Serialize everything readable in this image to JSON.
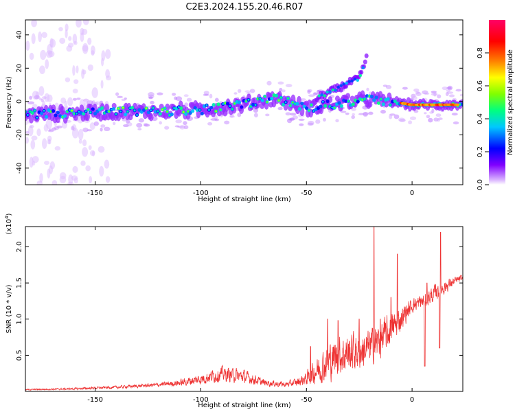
{
  "figure_title": "C2E3.2024.155.20.46.R07",
  "chart_data": [
    {
      "type": "heatmap",
      "title": "C2E3.2024.155.20.46.R07",
      "xlabel": "Height of straight line (km)",
      "ylabel": "Frequency (Hz)",
      "xlim": [
        -183,
        24
      ],
      "ylim": [
        -50,
        49
      ],
      "x_ticks": [
        -150,
        -100,
        -50,
        0
      ],
      "y_ticks": [
        -40,
        -20,
        0,
        20,
        40
      ],
      "colorbar": {
        "label": "Normalized spectral amplitude",
        "range": [
          0.0,
          1.0
        ],
        "ticks": [
          0.0,
          0.2,
          0.4,
          0.6,
          0.8
        ],
        "colors": [
          "#ffffff",
          "#d9b3ff",
          "#8000ff",
          "#0000ff",
          "#00c8ff",
          "#00ff80",
          "#80ff00",
          "#ffff00",
          "#ff8000",
          "#ff0000",
          "#ff0066"
        ]
      },
      "ridge": {
        "description": "dominant frequency track vs height",
        "x": [
          -183,
          -160,
          -140,
          -120,
          -100,
          -80,
          -65,
          -50,
          -40,
          -30,
          -20,
          -10,
          0,
          10,
          24
        ],
        "y": [
          -8,
          -7,
          -6,
          -6,
          -5,
          -2,
          2,
          -4,
          -2,
          0,
          1,
          0,
          -2,
          -2,
          -2
        ]
      },
      "branch": {
        "description": "upward-drifting secondary track",
        "x": [
          -45,
          -40,
          -35,
          -30,
          -25,
          -21
        ],
        "y": [
          2,
          5,
          8,
          11,
          14,
          28
        ]
      }
    },
    {
      "type": "line",
      "title": "",
      "xlabel": "Height of straight line (km)",
      "ylabel": "SNR (10 * v/v)",
      "y_multiplier": "(x10",
      "y_multiplier_exp": "4",
      "y_multiplier_close": ")",
      "xlim": [
        -183,
        24
      ],
      "ylim": [
        0,
        2.28
      ],
      "x_ticks": [
        -150,
        -100,
        -50,
        0
      ],
      "y_ticks": [
        0.5,
        1.0,
        1.5,
        2.0
      ],
      "color": "#ee3333",
      "envelope": {
        "x": [
          -183,
          -160,
          -140,
          -120,
          -110,
          -100,
          -90,
          -80,
          -70,
          -60,
          -55,
          -50,
          -45,
          -40,
          -35,
          -30,
          -25,
          -20,
          -15,
          -10,
          -5,
          0,
          5,
          10,
          15,
          20,
          24
        ],
        "base": [
          0.02,
          0.03,
          0.05,
          0.08,
          0.1,
          0.14,
          0.2,
          0.17,
          0.1,
          0.08,
          0.1,
          0.14,
          0.22,
          0.3,
          0.38,
          0.42,
          0.45,
          0.5,
          0.6,
          0.75,
          0.95,
          1.15,
          1.2,
          1.3,
          1.4,
          1.5,
          1.55
        ],
        "amp": [
          0.02,
          0.03,
          0.04,
          0.06,
          0.1,
          0.16,
          0.22,
          0.2,
          0.1,
          0.08,
          0.12,
          0.2,
          0.38,
          0.55,
          0.6,
          0.6,
          0.55,
          0.55,
          0.55,
          0.5,
          0.35,
          0.22,
          0.22,
          0.25,
          0.22,
          0.12,
          0.1
        ]
      },
      "spikes": [
        {
          "x": -48,
          "y": 0.62
        },
        {
          "x": -40,
          "y": 1.0
        },
        {
          "x": -35,
          "y": 0.98
        },
        {
          "x": -25,
          "y": 1.0
        },
        {
          "x": -18,
          "y": 2.28
        },
        {
          "x": -15,
          "y": 1.0
        },
        {
          "x": -10,
          "y": 1.3
        },
        {
          "x": -7,
          "y": 1.9
        },
        {
          "x": 7,
          "y": 1.5
        },
        {
          "x": 10,
          "y": 1.3
        },
        {
          "x": 13,
          "y": 2.0
        },
        {
          "x": 13.5,
          "y": 2.2
        }
      ],
      "dips": [
        {
          "x": 6,
          "y": 0.35
        },
        {
          "x": 13,
          "y": 0.6
        }
      ]
    }
  ]
}
